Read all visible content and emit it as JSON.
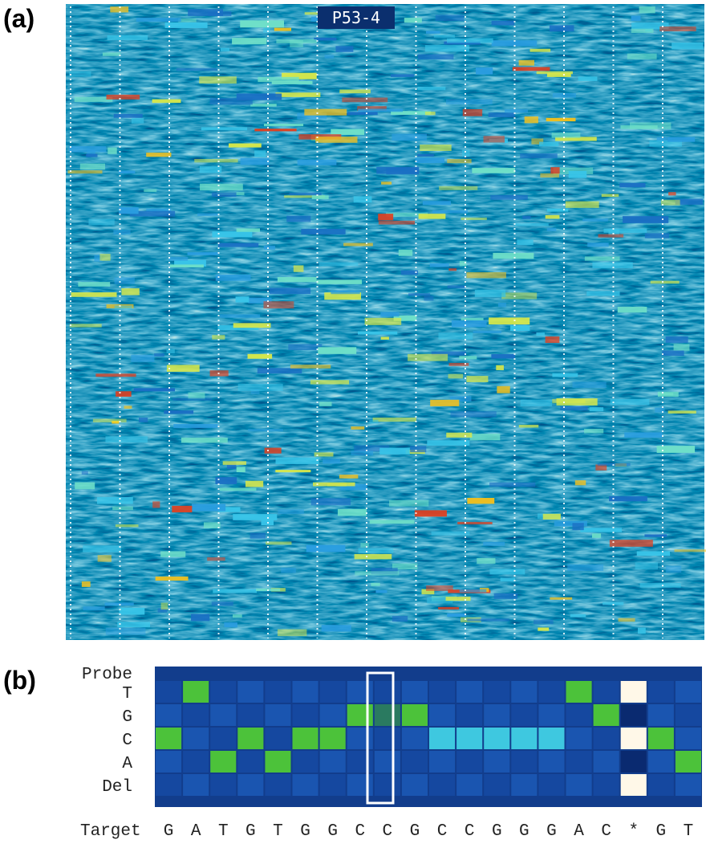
{
  "panel_a": {
    "label": "(a)",
    "title": "P53-4"
  },
  "panel_b": {
    "label": "(b)",
    "header": "Probe",
    "rows": [
      "T",
      "G",
      "C",
      "A",
      "Del"
    ],
    "target_label": "Target",
    "target": [
      "G",
      "A",
      "T",
      "G",
      "T",
      "G",
      "G",
      "C",
      "C",
      "G",
      "C",
      "C",
      "G",
      "G",
      "G",
      "A",
      "C",
      "*",
      "G",
      "T"
    ]
  }
}
